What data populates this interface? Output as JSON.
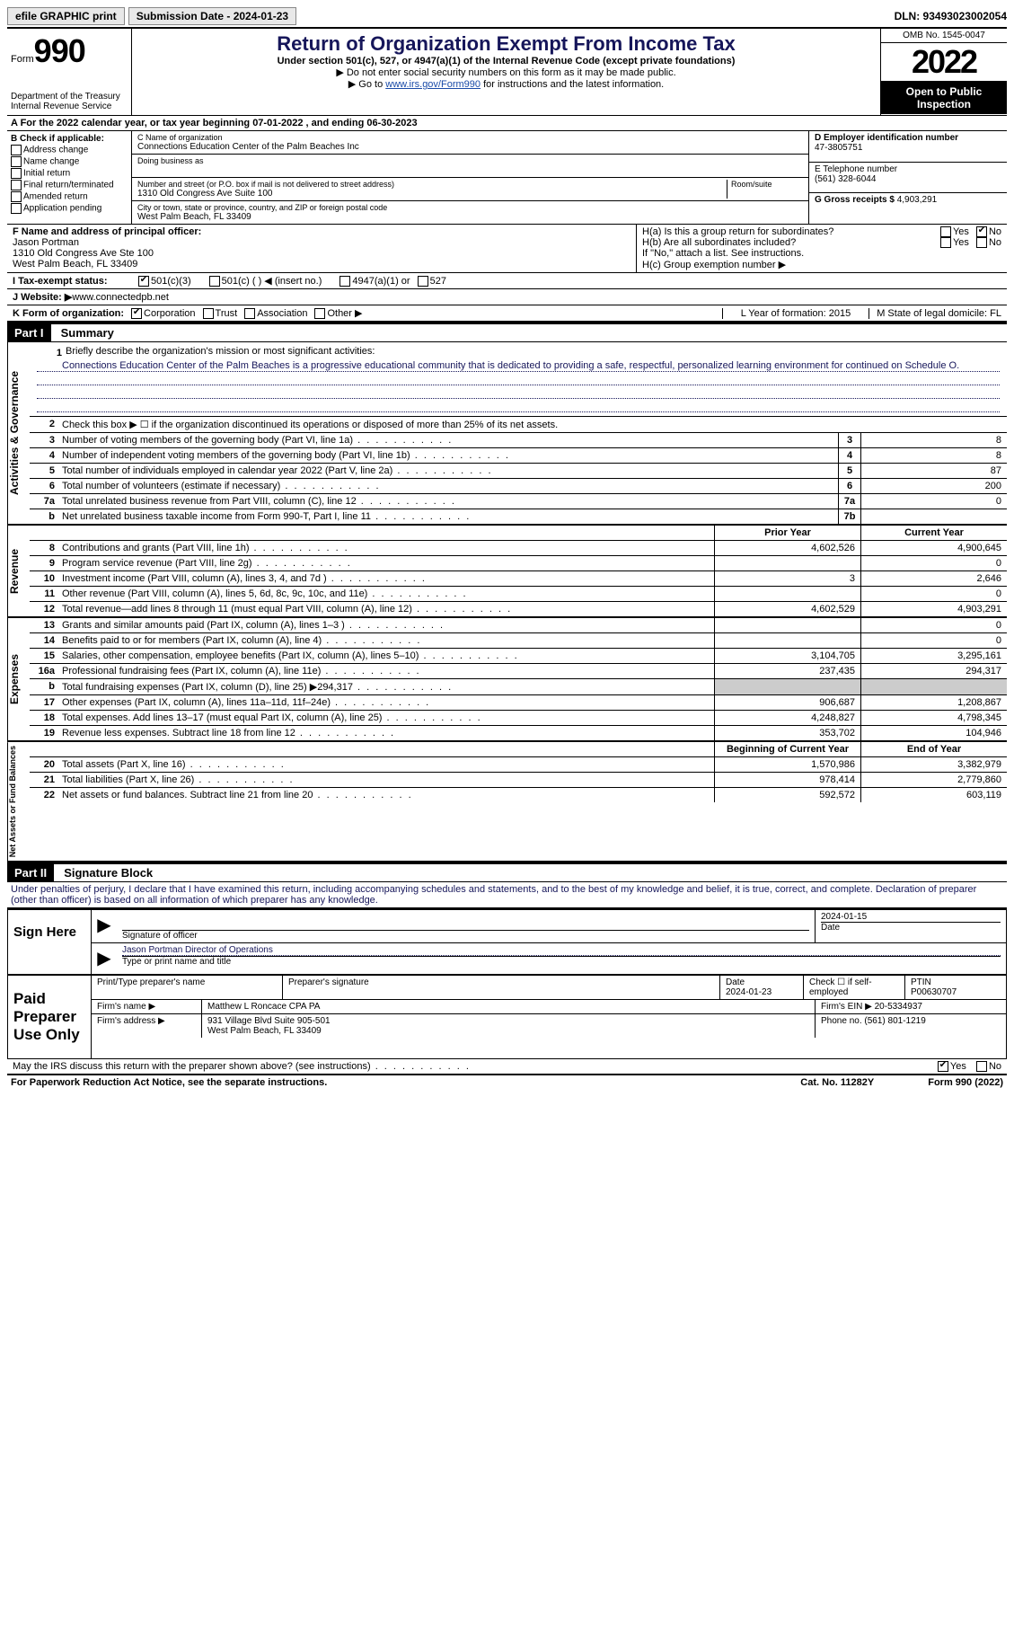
{
  "topbar": {
    "efile": "efile GRAPHIC print",
    "submission": "Submission Date - 2024-01-23",
    "dln": "DLN: 93493023002054"
  },
  "header": {
    "form_label": "Form",
    "form_number": "990",
    "dept": "Department of the Treasury",
    "irs": "Internal Revenue Service",
    "title": "Return of Organization Exempt From Income Tax",
    "subtitle": "Under section 501(c), 527, or 4947(a)(1) of the Internal Revenue Code (except private foundations)",
    "note1": "▶ Do not enter social security numbers on this form as it may be made public.",
    "note2_pre": "▶ Go to ",
    "note2_link": "www.irs.gov/Form990",
    "note2_post": " for instructions and the latest information.",
    "omb": "OMB No. 1545-0047",
    "year": "2022",
    "open": "Open to Public Inspection"
  },
  "sectionA": "A For the 2022 calendar year, or tax year beginning 07-01-2022    , and ending 06-30-2023",
  "colB": {
    "label": "B Check if applicable:",
    "opts": [
      "Address change",
      "Name change",
      "Initial return",
      "Final return/terminated",
      "Amended return",
      "Application pending"
    ]
  },
  "colC": {
    "name_label": "C Name of organization",
    "name": "Connections Education Center of the Palm Beaches Inc",
    "dba_label": "Doing business as",
    "addr_label": "Number and street (or P.O. box if mail is not delivered to street address)",
    "room_label": "Room/suite",
    "addr": "1310 Old Congress Ave Suite 100",
    "city_label": "City or town, state or province, country, and ZIP or foreign postal code",
    "city": "West Palm Beach, FL  33409"
  },
  "colD": {
    "ein_label": "D Employer identification number",
    "ein": "47-3805751",
    "phone_label": "E Telephone number",
    "phone": "(561) 328-6044",
    "gross_label": "G Gross receipts $",
    "gross": "4,903,291"
  },
  "rowF": {
    "label": "F  Name and address of principal officer:",
    "name": "Jason Portman",
    "addr1": "1310 Old Congress Ave Ste 100",
    "addr2": "West Palm Beach, FL  33409"
  },
  "rowH": {
    "ha": "H(a)  Is this a group return for subordinates?",
    "hb": "H(b)  Are all subordinates included?",
    "hb_note": "If \"No,\" attach a list. See instructions.",
    "hc": "H(c)  Group exemption number ▶",
    "yes": "Yes",
    "no": "No"
  },
  "rowI": {
    "label": "I   Tax-exempt status:",
    "o1": "501(c)(3)",
    "o2": "501(c) (  ) ◀ (insert no.)",
    "o3": "4947(a)(1) or",
    "o4": "527"
  },
  "rowJ": {
    "label": "J   Website: ▶ ",
    "val": "www.connectedpb.net"
  },
  "rowK": {
    "label": "K Form of organization:",
    "o1": "Corporation",
    "o2": "Trust",
    "o3": "Association",
    "o4": "Other ▶"
  },
  "rowL": "L Year of formation: 2015",
  "rowM": "M State of legal domicile: FL",
  "part1": {
    "header": "Part I",
    "title": "Summary"
  },
  "activities_label": "Activities & Governance",
  "revenue_label": "Revenue",
  "expenses_label": "Expenses",
  "netassets_label": "Net Assets or Fund Balances",
  "line1": {
    "num": "1",
    "desc": "Briefly describe the organization's mission or most significant activities:",
    "text": "Connections Education Center of the Palm Beaches is a progressive educational community that is dedicated to providing a safe, respectful, personalized learning environment for continued on Schedule O."
  },
  "line2": {
    "num": "2",
    "desc": "Check this box ▶ ☐  if the organization discontinued its operations or disposed of more than 25% of its net assets."
  },
  "lines_ag": [
    {
      "num": "3",
      "desc": "Number of voting members of the governing body (Part VI, line 1a)",
      "box": "3",
      "val": "8"
    },
    {
      "num": "4",
      "desc": "Number of independent voting members of the governing body (Part VI, line 1b)",
      "box": "4",
      "val": "8"
    },
    {
      "num": "5",
      "desc": "Total number of individuals employed in calendar year 2022 (Part V, line 2a)",
      "box": "5",
      "val": "87"
    },
    {
      "num": "6",
      "desc": "Total number of volunteers (estimate if necessary)",
      "box": "6",
      "val": "200"
    },
    {
      "num": "7a",
      "desc": "Total unrelated business revenue from Part VIII, column (C), line 12",
      "box": "7a",
      "val": "0"
    },
    {
      "num": "b",
      "desc": "Net unrelated business taxable income from Form 990-T, Part I, line 11",
      "box": "7b",
      "val": ""
    }
  ],
  "col_headers": {
    "prior": "Prior Year",
    "current": "Current Year"
  },
  "revenue_lines": [
    {
      "num": "8",
      "desc": "Contributions and grants (Part VIII, line 1h)",
      "prior": "4,602,526",
      "current": "4,900,645"
    },
    {
      "num": "9",
      "desc": "Program service revenue (Part VIII, line 2g)",
      "prior": "",
      "current": "0"
    },
    {
      "num": "10",
      "desc": "Investment income (Part VIII, column (A), lines 3, 4, and 7d )",
      "prior": "3",
      "current": "2,646"
    },
    {
      "num": "11",
      "desc": "Other revenue (Part VIII, column (A), lines 5, 6d, 8c, 9c, 10c, and 11e)",
      "prior": "",
      "current": "0"
    },
    {
      "num": "12",
      "desc": "Total revenue—add lines 8 through 11 (must equal Part VIII, column (A), line 12)",
      "prior": "4,602,529",
      "current": "4,903,291"
    }
  ],
  "expense_lines": [
    {
      "num": "13",
      "desc": "Grants and similar amounts paid (Part IX, column (A), lines 1–3 )",
      "prior": "",
      "current": "0"
    },
    {
      "num": "14",
      "desc": "Benefits paid to or for members (Part IX, column (A), line 4)",
      "prior": "",
      "current": "0"
    },
    {
      "num": "15",
      "desc": "Salaries, other compensation, employee benefits (Part IX, column (A), lines 5–10)",
      "prior": "3,104,705",
      "current": "3,295,161"
    },
    {
      "num": "16a",
      "desc": "Professional fundraising fees (Part IX, column (A), line 11e)",
      "prior": "237,435",
      "current": "294,317"
    },
    {
      "num": "b",
      "desc": "Total fundraising expenses (Part IX, column (D), line 25) ▶294,317",
      "prior": "shade",
      "current": "shade"
    },
    {
      "num": "17",
      "desc": "Other expenses (Part IX, column (A), lines 11a–11d, 11f–24e)",
      "prior": "906,687",
      "current": "1,208,867"
    },
    {
      "num": "18",
      "desc": "Total expenses. Add lines 13–17 (must equal Part IX, column (A), line 25)",
      "prior": "4,248,827",
      "current": "4,798,345"
    },
    {
      "num": "19",
      "desc": "Revenue less expenses. Subtract line 18 from line 12",
      "prior": "353,702",
      "current": "104,946"
    }
  ],
  "net_headers": {
    "begin": "Beginning of Current Year",
    "end": "End of Year"
  },
  "net_lines": [
    {
      "num": "20",
      "desc": "Total assets (Part X, line 16)",
      "prior": "1,570,986",
      "current": "3,382,979"
    },
    {
      "num": "21",
      "desc": "Total liabilities (Part X, line 26)",
      "prior": "978,414",
      "current": "2,779,860"
    },
    {
      "num": "22",
      "desc": "Net assets or fund balances. Subtract line 21 from line 20",
      "prior": "592,572",
      "current": "603,119"
    }
  ],
  "part2": {
    "header": "Part II",
    "title": "Signature Block",
    "penalty": "Under penalties of perjury, I declare that I have examined this return, including accompanying schedules and statements, and to the best of my knowledge and belief, it is true, correct, and complete. Declaration of preparer (other than officer) is based on all information of which preparer has any knowledge."
  },
  "sign": {
    "here": "Sign Here",
    "sig_label": "Signature of officer",
    "date": "2024-01-15",
    "date_label": "Date",
    "name": "Jason Portman  Director of Operations",
    "name_label": "Type or print name and title"
  },
  "paid": {
    "label": "Paid Preparer Use Only",
    "prep_name_label": "Print/Type preparer's name",
    "prep_sig_label": "Preparer's signature",
    "prep_date_label": "Date",
    "prep_date": "2024-01-23",
    "check_label": "Check ☐ if self-employed",
    "ptin_label": "PTIN",
    "ptin": "P00630707",
    "firm_name_label": "Firm's name    ▶",
    "firm_name": "Matthew L Roncace CPA PA",
    "firm_ein_label": "Firm's EIN ▶",
    "firm_ein": "20-5334937",
    "firm_addr_label": "Firm's address ▶",
    "firm_addr1": "931 Village Blvd Suite 905-501",
    "firm_addr2": "West Palm Beach, FL  33409",
    "phone_label": "Phone no.",
    "phone": "(561) 801-1219"
  },
  "discuss": "May the IRS discuss this return with the preparer shown above? (see instructions)",
  "footer": {
    "pra": "For Paperwork Reduction Act Notice, see the separate instructions.",
    "cat": "Cat. No. 11282Y",
    "form": "Form 990 (2022)"
  }
}
